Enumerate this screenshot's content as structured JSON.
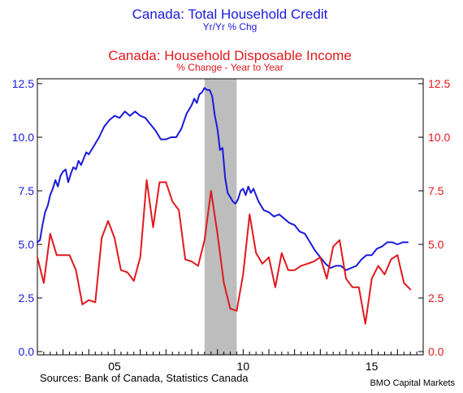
{
  "chart_data": {
    "type": "line",
    "titles": [
      {
        "text": "Canada: Total Household Credit",
        "color": "#1a1adb"
      },
      {
        "text": "Yr/Yr % Chg",
        "color": "#1a1adb"
      },
      {
        "text": "Canada: Household Disposable Income",
        "color": "#e0191e"
      },
      {
        "text": "% Change - Year to Year",
        "color": "#e0191e"
      }
    ],
    "x_ticks": [
      {
        "value": 2005,
        "label": "05"
      },
      {
        "value": 2010,
        "label": "10"
      },
      {
        "value": 2015,
        "label": "15"
      }
    ],
    "xlim": [
      2002.0,
      2017.0
    ],
    "ylim": [
      0,
      12.5
    ],
    "y_ticks": [
      "0.0",
      "2.5",
      "5.0",
      "7.5",
      "10.0",
      "12.5"
    ],
    "left_axis_color": "#1a1adb",
    "right_axis_color": "#e0191e",
    "recession_shade": {
      "from": 2008.5,
      "to": 2009.75,
      "color": "#bdbdbd"
    },
    "series": [
      {
        "color": "#1a1adb",
        "axis": "left",
        "x": [
          2002.0,
          2002.1,
          2002.2,
          2002.3,
          2002.4,
          2002.5,
          2002.6,
          2002.7,
          2002.8,
          2002.9,
          2003.0,
          2003.1,
          2003.2,
          2003.3,
          2003.4,
          2003.5,
          2003.6,
          2003.7,
          2003.8,
          2003.9,
          2004.0,
          2004.2,
          2004.4,
          2004.6,
          2004.8,
          2005.0,
          2005.2,
          2005.4,
          2005.6,
          2005.8,
          2006.0,
          2006.2,
          2006.4,
          2006.6,
          2006.8,
          2007.0,
          2007.2,
          2007.4,
          2007.6,
          2007.8,
          2008.0,
          2008.1,
          2008.2,
          2008.3,
          2008.4,
          2008.5,
          2008.6,
          2008.7,
          2008.8,
          2008.9,
          2009.0,
          2009.1,
          2009.2,
          2009.3,
          2009.4,
          2009.5,
          2009.6,
          2009.7,
          2009.8,
          2009.9,
          2010.0,
          2010.1,
          2010.2,
          2010.3,
          2010.4,
          2010.6,
          2010.8,
          2011.0,
          2011.2,
          2011.4,
          2011.6,
          2011.8,
          2012.0,
          2012.2,
          2012.4,
          2012.6,
          2012.8,
          2013.0,
          2013.2,
          2013.4,
          2013.6,
          2013.8,
          2014.0,
          2014.2,
          2014.4,
          2014.6,
          2014.8,
          2015.0,
          2015.2,
          2015.4,
          2015.6,
          2015.8,
          2016.0,
          2016.2,
          2016.4
        ],
        "values": [
          5.1,
          5.2,
          5.9,
          6.5,
          6.8,
          7.3,
          7.6,
          8.0,
          7.7,
          8.2,
          8.4,
          8.5,
          7.9,
          8.3,
          8.6,
          8.5,
          8.9,
          8.7,
          9.0,
          9.3,
          9.2,
          9.6,
          10.0,
          10.5,
          10.8,
          11.0,
          10.9,
          11.2,
          11.0,
          11.2,
          11.0,
          10.9,
          10.6,
          10.3,
          9.9,
          9.9,
          10.0,
          10.0,
          10.4,
          11.1,
          11.5,
          11.8,
          11.6,
          12.0,
          12.1,
          12.3,
          12.2,
          12.2,
          11.9,
          11.0,
          10.4,
          9.4,
          9.5,
          8.1,
          7.4,
          7.2,
          7.0,
          6.9,
          7.1,
          7.5,
          7.6,
          7.3,
          7.7,
          7.4,
          7.6,
          7.0,
          6.6,
          6.5,
          6.3,
          6.4,
          6.2,
          6.0,
          5.9,
          5.6,
          5.5,
          5.1,
          4.7,
          4.4,
          4.1,
          3.9,
          4.0,
          4.0,
          3.8,
          3.9,
          4.0,
          4.3,
          4.5,
          4.5,
          4.8,
          4.9,
          5.1,
          5.1,
          5.0,
          5.1,
          5.1
        ]
      },
      {
        "color": "#e0191e",
        "axis": "right",
        "x": [
          2002.0,
          2002.25,
          2002.5,
          2002.75,
          2003.0,
          2003.25,
          2003.5,
          2003.75,
          2004.0,
          2004.25,
          2004.5,
          2004.75,
          2005.0,
          2005.25,
          2005.5,
          2005.75,
          2006.0,
          2006.25,
          2006.5,
          2006.75,
          2007.0,
          2007.25,
          2007.5,
          2007.75,
          2008.0,
          2008.25,
          2008.5,
          2008.75,
          2009.0,
          2009.25,
          2009.5,
          2009.75,
          2010.0,
          2010.25,
          2010.5,
          2010.75,
          2011.0,
          2011.25,
          2011.5,
          2011.75,
          2012.0,
          2012.25,
          2012.5,
          2012.75,
          2013.0,
          2013.25,
          2013.5,
          2013.75,
          2014.0,
          2014.25,
          2014.5,
          2014.75,
          2015.0,
          2015.25,
          2015.5,
          2015.75,
          2016.0,
          2016.25,
          2016.5
        ],
        "values": [
          4.4,
          3.2,
          5.5,
          4.5,
          4.5,
          4.5,
          3.8,
          2.2,
          2.4,
          2.3,
          5.3,
          6.1,
          5.3,
          3.8,
          3.7,
          3.3,
          4.4,
          8.0,
          5.8,
          7.9,
          7.9,
          7.0,
          6.6,
          4.3,
          4.2,
          4.0,
          5.2,
          7.5,
          5.5,
          3.2,
          2.0,
          1.9,
          3.6,
          6.4,
          4.6,
          4.1,
          4.4,
          3.0,
          4.6,
          3.8,
          3.8,
          4.0,
          4.1,
          4.2,
          4.4,
          3.4,
          4.9,
          5.2,
          3.4,
          3.0,
          3.0,
          1.3,
          3.4,
          4.0,
          3.6,
          4.3,
          4.5,
          3.2,
          2.9
        ]
      }
    ],
    "sources": "Sources:  Bank of Canada, Statistics Canada",
    "credit": "BMO Capital Markets"
  }
}
